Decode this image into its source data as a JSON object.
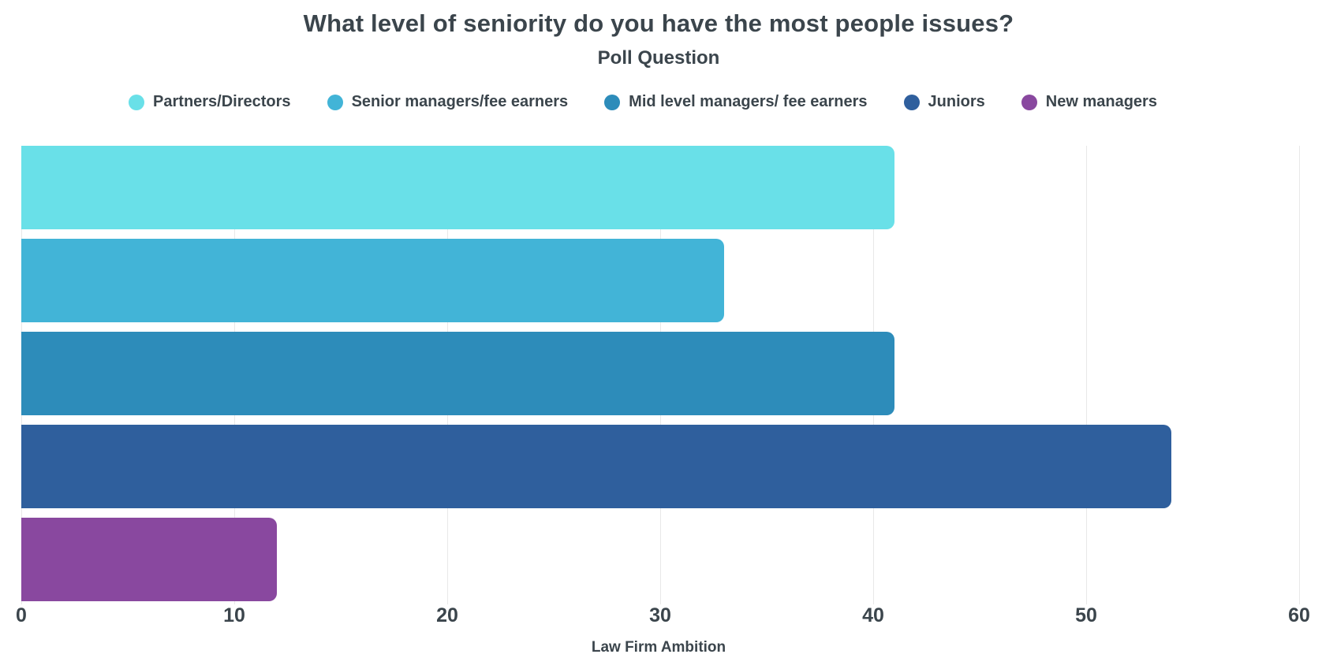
{
  "chart_data": {
    "type": "bar",
    "orientation": "horizontal",
    "title": "What level of seniority do you have the most people issues?",
    "subtitle": "Poll Question",
    "xlabel": "Law Firm Ambition",
    "categories": [
      "Partners/Directors",
      "Senior managers/fee earners",
      "Mid level managers/ fee earners",
      "Juniors",
      "New managers"
    ],
    "values": [
      41,
      33,
      41,
      54,
      12
    ],
    "colors": [
      "#69E0E8",
      "#42B4D7",
      "#2D8CBA",
      "#2F5F9D",
      "#89489F"
    ],
    "xlim": [
      0,
      60
    ],
    "xticks": [
      0,
      10,
      20,
      30,
      40,
      50,
      60
    ],
    "grid": "vertical-gridlines",
    "legend_position": "top"
  },
  "style": {
    "text_color": "#3B454C",
    "grid_color": "#E8E8E8",
    "background": "#FFFFFF"
  }
}
